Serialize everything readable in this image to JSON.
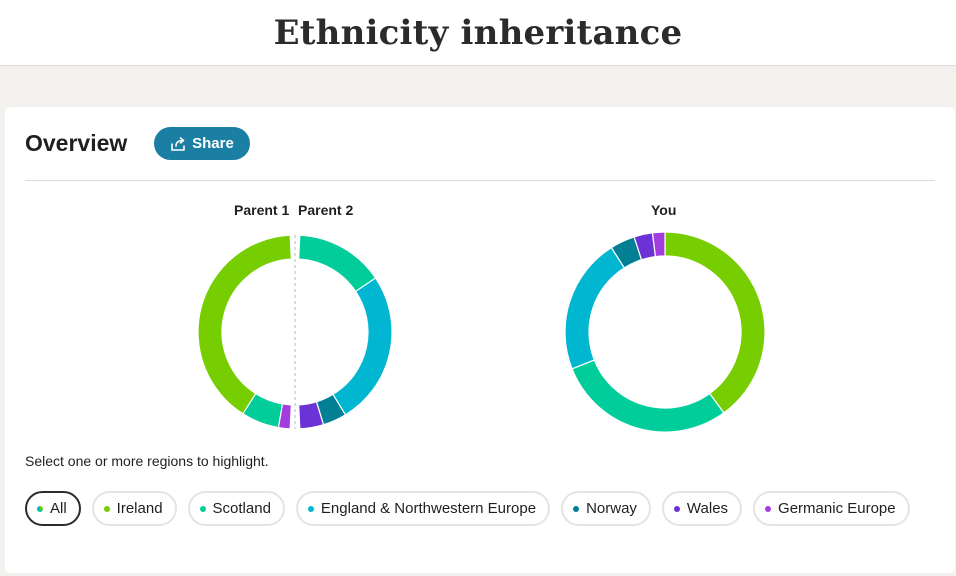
{
  "header": {
    "title": "Ethnicity inheritance"
  },
  "overview": {
    "title": "Overview",
    "share_label": "Share",
    "share_icon": "share-icon",
    "labels": {
      "parent1": "Parent 1",
      "parent2": "Parent 2",
      "you": "You"
    },
    "helper_text": "Select one or more regions to highlight."
  },
  "colors": {
    "ireland": "#76cd00",
    "scotland": "#00cd9a",
    "england": "#00b6d0",
    "norway": "#007f95",
    "wales": "#6b33d6",
    "germanic": "#a43dde",
    "share_button": "#1a7fa3"
  },
  "regions": [
    {
      "key": "all",
      "label": "All",
      "selected": true
    },
    {
      "key": "ireland",
      "label": "Ireland",
      "selected": false
    },
    {
      "key": "scotland",
      "label": "Scotland",
      "selected": false
    },
    {
      "key": "england",
      "label": "England & Northwestern Europe",
      "selected": false
    },
    {
      "key": "norway",
      "label": "Norway",
      "selected": false
    },
    {
      "key": "wales",
      "label": "Wales",
      "selected": false
    },
    {
      "key": "germanic",
      "label": "Germanic Europe",
      "selected": false
    }
  ],
  "chart_data": [
    {
      "type": "pie",
      "title": "Parent 1",
      "series": [
        {
          "name": "Ireland",
          "value": 83
        },
        {
          "name": "Scotland",
          "value": 13
        },
        {
          "name": "Germanic Europe",
          "value": 4
        }
      ]
    },
    {
      "type": "pie",
      "title": "Parent 2",
      "series": [
        {
          "name": "Scotland",
          "value": 30
        },
        {
          "name": "England & Northwestern Europe",
          "value": 52
        },
        {
          "name": "Norway",
          "value": 8
        },
        {
          "name": "Wales",
          "value": 8
        }
      ]
    },
    {
      "type": "pie",
      "title": "You",
      "series": [
        {
          "name": "Ireland",
          "value": 40
        },
        {
          "name": "Scotland",
          "value": 29
        },
        {
          "name": "England & Northwestern Europe",
          "value": 22
        },
        {
          "name": "Norway",
          "value": 4
        },
        {
          "name": "Wales",
          "value": 3
        },
        {
          "name": "Germanic Europe",
          "value": 2
        }
      ]
    }
  ]
}
